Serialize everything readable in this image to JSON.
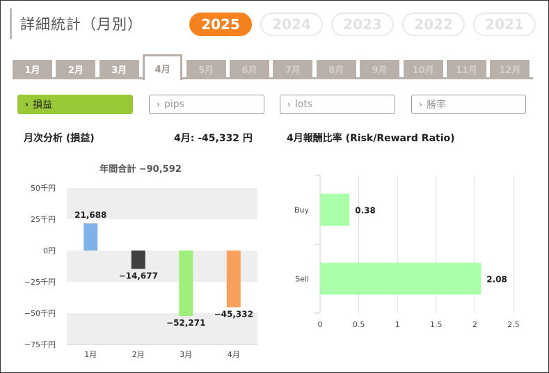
{
  "header": {
    "title": "詳細統計（月別）"
  },
  "years": [
    {
      "label": "2025",
      "active": true
    },
    {
      "label": "2024",
      "active": false
    },
    {
      "label": "2023",
      "active": false
    },
    {
      "label": "2022",
      "active": false
    },
    {
      "label": "2021",
      "active": false
    }
  ],
  "months": [
    {
      "label": "1月",
      "state": "past"
    },
    {
      "label": "2月",
      "state": "past"
    },
    {
      "label": "3月",
      "state": "past"
    },
    {
      "label": "4月",
      "state": "active"
    },
    {
      "label": "5月",
      "state": "future"
    },
    {
      "label": "6月",
      "state": "future"
    },
    {
      "label": "7月",
      "state": "future"
    },
    {
      "label": "8月",
      "state": "future"
    },
    {
      "label": "9月",
      "state": "future"
    },
    {
      "label": "10月",
      "state": "future"
    },
    {
      "label": "11月",
      "state": "future"
    },
    {
      "label": "12月",
      "state": "future"
    }
  ],
  "filters": [
    {
      "label": "損益",
      "active": true
    },
    {
      "label": "pips",
      "active": false
    },
    {
      "label": "lots",
      "active": false
    },
    {
      "label": "勝率",
      "active": false
    }
  ],
  "monthly": {
    "heading": "月次分析 (損益)",
    "summary": "4月:  -45,332 円"
  },
  "ratio": {
    "heading": "4月報酬比率 (Risk/Reward Ratio)"
  },
  "chart_data": [
    {
      "type": "bar",
      "title": "年間合計 −90,592",
      "categories": [
        "1月",
        "2月",
        "3月",
        "4月"
      ],
      "values": [
        21688,
        -14677,
        -52271,
        -45332
      ],
      "value_labels": [
        "21,688",
        "−14,677",
        "−52,271",
        "−45,332"
      ],
      "colors": [
        "#7fb3e8",
        "#404040",
        "#9ef07a",
        "#f9a15c"
      ],
      "ylim": [
        -75000,
        50000
      ],
      "yticks": [
        50000,
        25000,
        0,
        -25000,
        -50000,
        -75000
      ],
      "ytick_labels": [
        "50千円",
        "25千円",
        "0円",
        "−25千円",
        "−50千円",
        "−75千円"
      ],
      "grid_bands": true
    },
    {
      "type": "bar",
      "orientation": "horizontal",
      "categories": [
        "Buy",
        "Sell"
      ],
      "values": [
        0.38,
        2.08
      ],
      "value_labels": [
        "0.38",
        "2.08"
      ],
      "color": "#aaffaa",
      "xlim": [
        0,
        2.5
      ],
      "xticks": [
        0,
        0.5,
        1,
        1.5,
        2,
        2.5
      ],
      "xtick_labels": [
        "0",
        "0.5",
        "1",
        "1.5",
        "2",
        "2.5"
      ],
      "grid": true
    }
  ]
}
